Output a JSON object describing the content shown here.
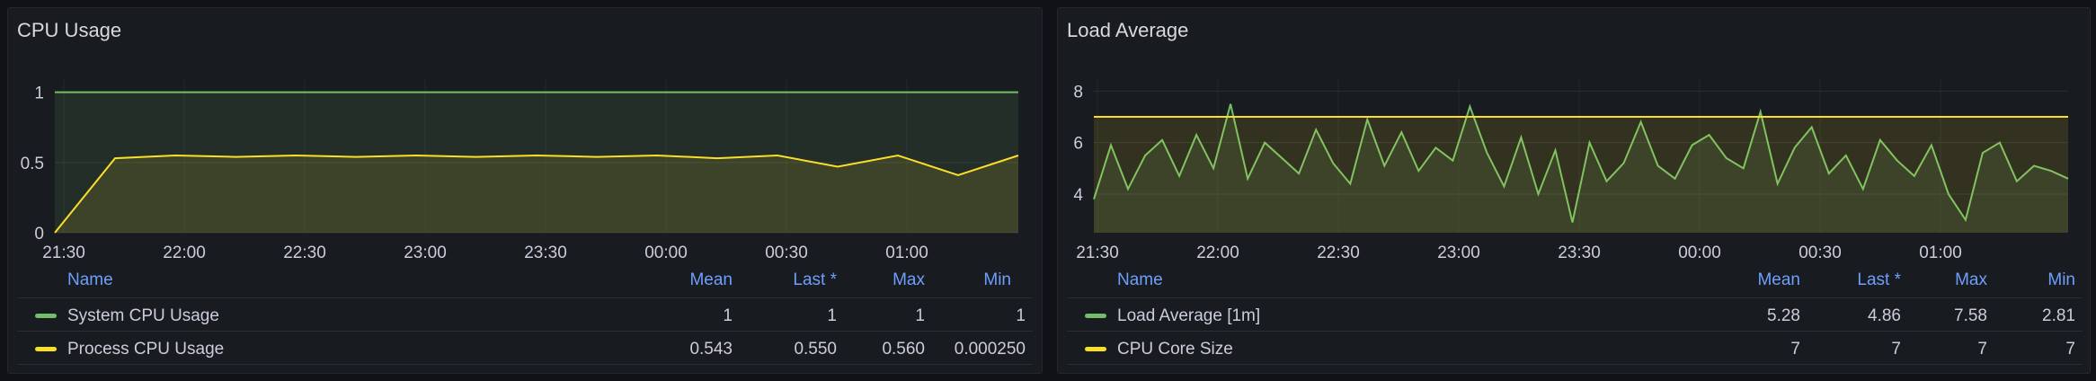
{
  "chart_data": [
    {
      "type": "area",
      "title": "CPU Usage",
      "x_tick_labels": [
        "21:30",
        "22:00",
        "22:30",
        "23:00",
        "23:30",
        "00:00",
        "00:30",
        "01:00"
      ],
      "y_tick_labels": [
        "0",
        "0.5",
        "1"
      ],
      "ylim": [
        0,
        1.1
      ],
      "series": [
        {
          "name": "System CPU Usage",
          "color": "#73bf69",
          "values": [
            1,
            1,
            1,
            1,
            1,
            1,
            1,
            1,
            1,
            1,
            1,
            1,
            1,
            1,
            1,
            1
          ]
        },
        {
          "name": "Process CPU Usage",
          "color": "#fade2a",
          "values": [
            0.0,
            0.53,
            0.55,
            0.54,
            0.55,
            0.54,
            0.55,
            0.54,
            0.55,
            0.54,
            0.55,
            0.53,
            0.55,
            0.47,
            0.55,
            0.41,
            0.55
          ]
        }
      ],
      "legend": {
        "headers": {
          "name": "Name",
          "mean": "Mean",
          "last": "Last *",
          "max": "Max",
          "min": "Min"
        },
        "rows": [
          {
            "name": "System CPU Usage",
            "color": "#73bf69",
            "mean": "1",
            "last": "1",
            "max": "1",
            "min": "1"
          },
          {
            "name": "Process CPU Usage",
            "color": "#fade2a",
            "mean": "0.543",
            "last": "0.550",
            "max": "0.560",
            "min": "0.000250"
          }
        ]
      }
    },
    {
      "type": "line",
      "title": "Load Average",
      "x_tick_labels": [
        "21:30",
        "22:00",
        "22:30",
        "23:00",
        "23:30",
        "00:00",
        "00:30",
        "01:00"
      ],
      "y_tick_labels": [
        "4",
        "6",
        "8"
      ],
      "ylim": [
        2.5,
        8.5
      ],
      "series": [
        {
          "name": "Load Average [1m]",
          "color": "#73bf69",
          "values": [
            3.8,
            5.9,
            4.2,
            5.5,
            6.1,
            4.7,
            6.3,
            5.0,
            7.5,
            4.6,
            6.0,
            5.4,
            4.8,
            6.5,
            5.2,
            4.4,
            6.9,
            5.1,
            6.4,
            4.9,
            5.8,
            5.3,
            7.4,
            5.6,
            4.3,
            6.2,
            4.0,
            5.7,
            2.9,
            6.0,
            4.5,
            5.2,
            6.8,
            5.1,
            4.6,
            5.9,
            6.3,
            5.4,
            5.0,
            7.2,
            4.4,
            5.8,
            6.6,
            4.8,
            5.5,
            4.2,
            6.1,
            5.3,
            4.7,
            5.9,
            4.0,
            3.0,
            5.6,
            6.0,
            4.5,
            5.1,
            4.9,
            4.6
          ]
        },
        {
          "name": "CPU Core Size",
          "color": "#fade2a",
          "values": [
            7,
            7,
            7,
            7,
            7,
            7,
            7,
            7,
            7,
            7
          ]
        }
      ],
      "legend": {
        "headers": {
          "name": "Name",
          "mean": "Mean",
          "last": "Last *",
          "max": "Max",
          "min": "Min"
        },
        "rows": [
          {
            "name": "Load Average [1m]",
            "color": "#73bf69",
            "mean": "5.28",
            "last": "4.86",
            "max": "7.58",
            "min": "2.81"
          },
          {
            "name": "CPU Core Size",
            "color": "#fade2a",
            "mean": "7",
            "last": "7",
            "max": "7",
            "min": "7"
          }
        ]
      }
    }
  ]
}
